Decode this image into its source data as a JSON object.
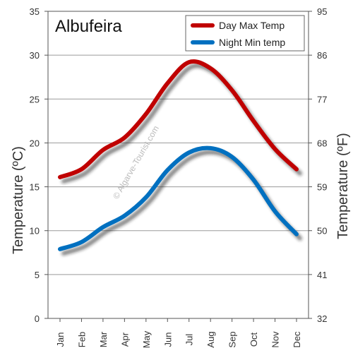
{
  "chart_data": {
    "type": "line",
    "title": "Albufeira",
    "watermark": "© Algarve-Tourist.com",
    "categories": [
      "Jan",
      "Feb",
      "Mar",
      "Apr",
      "May",
      "Jun",
      "Jul",
      "Aug",
      "Sep",
      "Oct",
      "Nov",
      "Dec"
    ],
    "ylabel_left": "Temperature  (ºC)",
    "ylabel_right": "Temperature (ºF)",
    "ylim": [
      0,
      35
    ],
    "y_ticks_left": [
      "0",
      "5",
      "10",
      "15",
      "20",
      "25",
      "30",
      "35"
    ],
    "y_ticks_right": [
      "32",
      "41",
      "50",
      "59",
      "68",
      "77",
      "86",
      "95"
    ],
    "grid": true,
    "legend_position": "top-right",
    "series": [
      {
        "name": "Day Max Temp",
        "color": "#c00000",
        "values": [
          16.1,
          17.0,
          19.2,
          20.6,
          23.3,
          26.8,
          29.2,
          28.5,
          26.0,
          22.5,
          19.3,
          17.0
        ]
      },
      {
        "name": "Night Min temp",
        "color": "#0070c0",
        "values": [
          7.9,
          8.7,
          10.4,
          11.7,
          13.8,
          16.9,
          18.9,
          19.4,
          18.4,
          15.8,
          12.2,
          9.6
        ]
      }
    ]
  }
}
